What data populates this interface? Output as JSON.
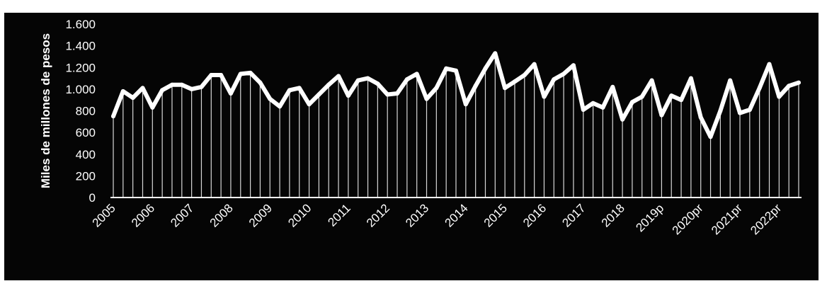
{
  "chart_data": {
    "type": "line",
    "title": "",
    "xlabel": "",
    "ylabel": "Miles de millones de pesos",
    "ylim": [
      0,
      1600
    ],
    "yticks": [
      0,
      200,
      400,
      600,
      800,
      1000,
      1200,
      1400,
      1600
    ],
    "ytick_labels": [
      "0",
      "200",
      "400",
      "600",
      "800",
      "1.000",
      "1.200",
      "1.400",
      "1.600"
    ],
    "year_labels": [
      "2005",
      "2006",
      "2007",
      "2008",
      "2009",
      "2010",
      "2011",
      "2012",
      "2013",
      "2014",
      "2015",
      "2016",
      "2017",
      "2018",
      "2019p",
      "2020pr",
      "2021pr",
      "2022pr"
    ],
    "periods_per_year": 4,
    "grid": false,
    "drop_lines": true,
    "legend": "none",
    "colors": {
      "background": "#050505",
      "line": "#ffffff",
      "text": "#ffffff"
    },
    "series": [
      {
        "values": [
          750,
          980,
          920,
          1010,
          830,
          990,
          1040,
          1040,
          1000,
          1020,
          1130,
          1130,
          960,
          1140,
          1150,
          1060,
          910,
          840,
          990,
          1010,
          860,
          950,
          1040,
          1120,
          940,
          1080,
          1100,
          1050,
          950,
          960,
          1090,
          1140,
          910,
          1010,
          1190,
          1170,
          860,
          1030,
          1190,
          1330,
          1010,
          1070,
          1130,
          1230,
          930,
          1090,
          1140,
          1220,
          810,
          870,
          830,
          1020,
          720,
          880,
          930,
          1080,
          760,
          940,
          900,
          1100,
          740,
          560,
          800,
          1080,
          780,
          810,
          1010,
          1230,
          930,
          1030,
          1060
        ]
      }
    ]
  }
}
